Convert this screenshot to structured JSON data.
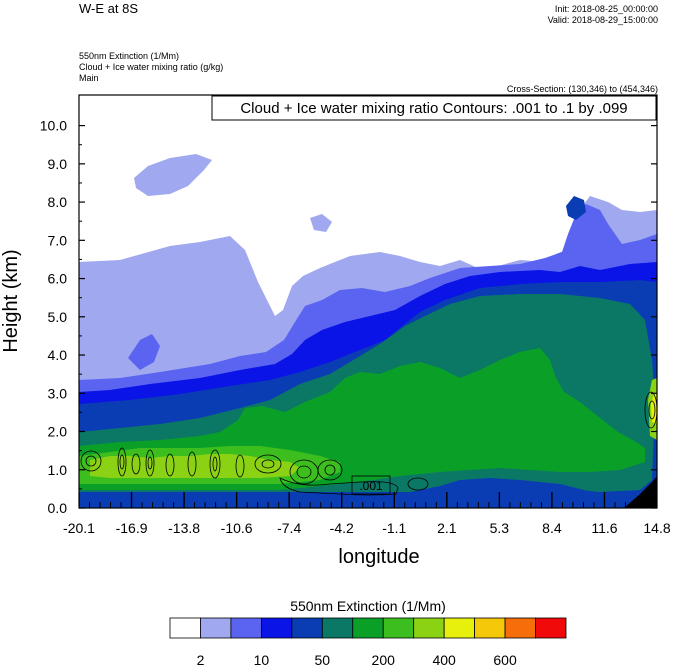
{
  "header": {
    "title": "W-E at 8S",
    "init": "Init: 2018-08-25_00:00:00",
    "valid": "Valid: 2018-08-29_15:00:00",
    "field_line1": "550nm Extinction   (1/Mm)",
    "field_line2": "Cloud + Ice water mixing ratio   (g/kg)",
    "field_line3": "Main",
    "cross_section": "Cross-Section: (130,346) to (454,346)"
  },
  "chart_data": {
    "type": "heatmap",
    "xlabel": "longitude",
    "ylabel": "Height (km)",
    "xlim": [
      -20.1,
      14.8
    ],
    "ylim": [
      0,
      10.8
    ],
    "x_ticks": [
      "-20.1",
      "-16.9",
      "-13.8",
      "-10.6",
      "-7.4",
      "-4.2",
      "-1.1",
      "2.1",
      "5.3",
      "8.4",
      "11.6",
      "14.8"
    ],
    "y_ticks": [
      "0.0",
      "1.0",
      "2.0",
      "3.0",
      "4.0",
      "5.0",
      "6.0",
      "7.0",
      "8.0",
      "9.0",
      "10.0"
    ],
    "y_tick_values": [
      0,
      1,
      2,
      3,
      4,
      5,
      6,
      7,
      8,
      9,
      10
    ],
    "contour_info": "Cloud + Ice water mixing ratio Contours: .001 to .1 by .099",
    "contour_label": ".001",
    "colorbar": {
      "title": "550nm Extinction  (1/Mm)",
      "colors": [
        "#ffffff",
        "#a0a8f0",
        "#5a64f0",
        "#0a14e6",
        "#0a3cb4",
        "#0a7864",
        "#0aa028",
        "#3cbe1e",
        "#8cd214",
        "#e6f00a",
        "#f5c80a",
        "#f56e0a",
        "#f00a0a"
      ],
      "labels": [
        "2",
        "10",
        "50",
        "200",
        "400",
        "600"
      ]
    },
    "colors": {
      "white": "#ffffff",
      "lavender": "#a0a8f0",
      "periwinkle": "#5a64f0",
      "blue": "#0a14e6",
      "dark_blue": "#0a3cb4",
      "teal": "#0a7864",
      "green": "#0aa028",
      "bright_green": "#3cbe1e",
      "yellow_green": "#8cd214",
      "yellow": "#e6f00a",
      "orange": "#f5c80a",
      "dark_orange": "#f56e0a",
      "red": "#f00a0a",
      "terrain": "#000000"
    }
  }
}
